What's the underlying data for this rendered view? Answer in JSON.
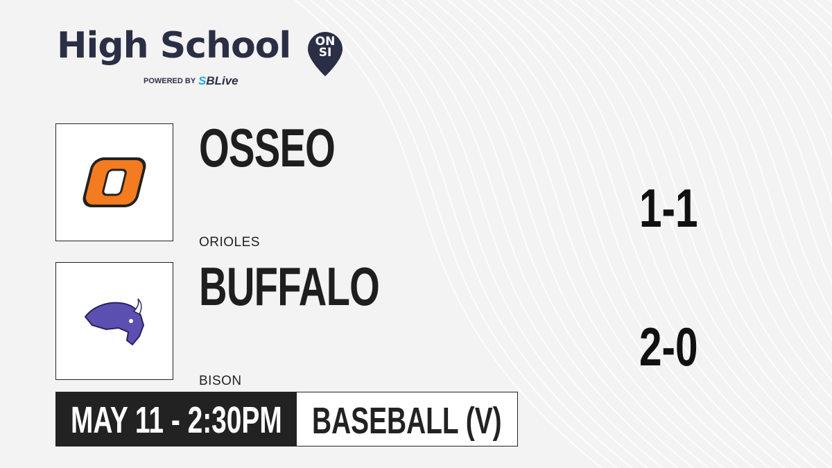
{
  "brand": {
    "title": "High School",
    "badge_top": "ON",
    "badge_bottom": "SI",
    "powered_by": "POWERED BY",
    "partner_prefix": "S",
    "partner": "SBLive"
  },
  "teams": [
    {
      "name": "OSSEO",
      "mascot": "ORIOLES",
      "record": "1-1",
      "logo_color": "#f47b20"
    },
    {
      "name": "BUFFALO",
      "mascot": "BISON",
      "record": "2-0",
      "logo_color": "#5b4fb0"
    }
  ],
  "game": {
    "datetime": "MAY 11 - 2:30PM",
    "sport": "BASEBALL (V)"
  },
  "colors": {
    "brand_navy": "#2b2f45",
    "sblive_blue": "#27a8e0",
    "bar_dark": "#222222"
  }
}
